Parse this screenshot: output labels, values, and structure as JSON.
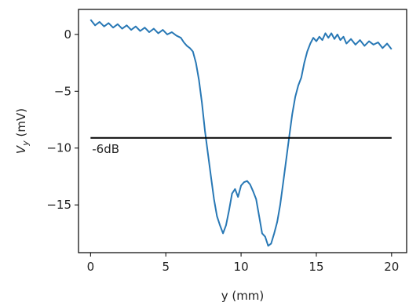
{
  "chart_data": {
    "type": "line",
    "xlabel": "y (mm)",
    "ylabel_main": "V",
    "ylabel_sub": "y",
    "ylabel_unit": " (mV)",
    "xlim": [
      -0.8,
      21.0
    ],
    "ylim": [
      -19.2,
      2.2
    ],
    "x_ticks": [
      0,
      5,
      10,
      15,
      20
    ],
    "y_ticks": [
      0,
      -5,
      -10,
      -15
    ],
    "y_tick_labels": [
      "0",
      "−5",
      "−10",
      "−15"
    ],
    "grid": false,
    "legend": "none",
    "colors": {
      "series": "#2878b5",
      "reference_line": "#000000",
      "axes": "#000000"
    },
    "series": [
      {
        "x": [
          0,
          0.3,
          0.6,
          0.9,
          1.2,
          1.5,
          1.8,
          2.1,
          2.4,
          2.7,
          3.0,
          3.3,
          3.6,
          3.9,
          4.2,
          4.5,
          4.8,
          5.1,
          5.4,
          5.7,
          6.0,
          6.2,
          6.4,
          6.6,
          6.8,
          7.0,
          7.2,
          7.4,
          7.6,
          7.8,
          8.0,
          8.2,
          8.4,
          8.6,
          8.8,
          9.0,
          9.2,
          9.4,
          9.6,
          9.8,
          10.0,
          10.2,
          10.4,
          10.6,
          10.8,
          11.0,
          11.2,
          11.4,
          11.6,
          11.8,
          12.0,
          12.2,
          12.4,
          12.6,
          12.8,
          13.0,
          13.2,
          13.4,
          13.6,
          13.8,
          14.0,
          14.2,
          14.4,
          14.6,
          14.8,
          15.0,
          15.2,
          15.4,
          15.6,
          15.8,
          16.0,
          16.2,
          16.4,
          16.6,
          16.8,
          17.0,
          17.3,
          17.6,
          17.9,
          18.2,
          18.5,
          18.8,
          19.1,
          19.4,
          19.7,
          20.0
        ],
        "y": [
          1.3,
          0.8,
          1.1,
          0.7,
          1.0,
          0.6,
          0.9,
          0.5,
          0.8,
          0.4,
          0.7,
          0.3,
          0.6,
          0.2,
          0.5,
          0.1,
          0.4,
          0.0,
          0.2,
          -0.1,
          -0.3,
          -0.7,
          -1.0,
          -1.2,
          -1.5,
          -2.5,
          -4.0,
          -6.0,
          -8.5,
          -10.5,
          -12.5,
          -14.5,
          -16.0,
          -16.8,
          -17.5,
          -16.8,
          -15.5,
          -14.0,
          -13.6,
          -14.3,
          -13.3,
          -13.0,
          -12.9,
          -13.2,
          -13.8,
          -14.5,
          -16.0,
          -17.5,
          -17.8,
          -18.6,
          -18.4,
          -17.5,
          -16.5,
          -15.0,
          -13.0,
          -11.0,
          -9.0,
          -7.0,
          -5.5,
          -4.5,
          -3.8,
          -2.5,
          -1.5,
          -0.8,
          -0.3,
          -0.6,
          -0.2,
          -0.5,
          0.1,
          -0.3,
          0.1,
          -0.4,
          0.0,
          -0.5,
          -0.2,
          -0.8,
          -0.4,
          -0.9,
          -0.5,
          -1.0,
          -0.6,
          -0.9,
          -0.7,
          -1.2,
          -0.8,
          -1.3
        ]
      }
    ],
    "reference_line": {
      "y": -9.1,
      "label": "-6dB",
      "label_x": 0.1,
      "label_y": -10.1
    }
  }
}
